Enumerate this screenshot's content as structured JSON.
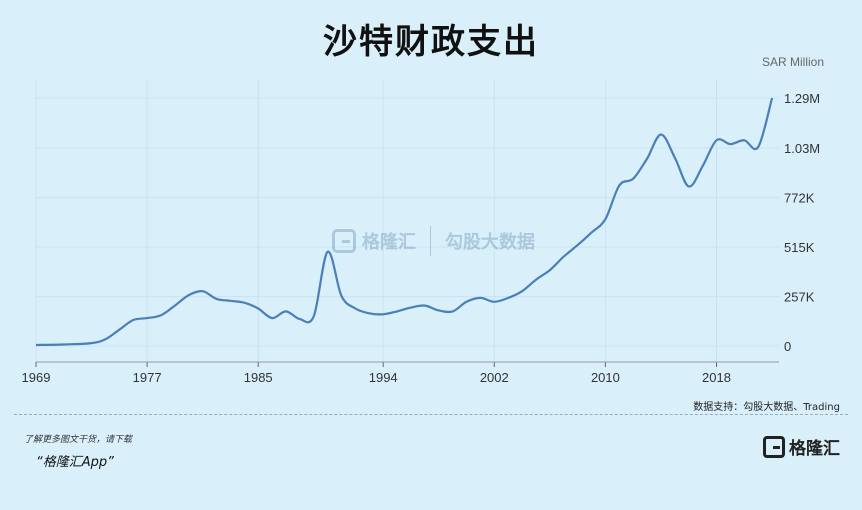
{
  "header": {
    "title": "沙特财政支出"
  },
  "watermark": {
    "name": "格隆汇",
    "name2": "勾股大数据"
  },
  "footer": {
    "source": "数据支持：勾股大数据、Trading",
    "download_hint": "了解更多图文干货，请下载",
    "app_name": "“格隆汇App”",
    "brand_name": "格隆汇"
  },
  "chart_data": {
    "type": "line",
    "title": "沙特财政支出",
    "unit_label": "SAR Million",
    "x_ticks": [
      "1969",
      "1977",
      "1985",
      "1994",
      "2002",
      "2010",
      "2018"
    ],
    "y_ticks": [
      "0",
      "257K",
      "515K",
      "772K",
      "1.03M",
      "1.29M"
    ],
    "y_tick_values": [
      0,
      257000,
      515000,
      772000,
      1030000,
      1290000
    ],
    "xlim": [
      1969,
      2022.5
    ],
    "ylim": [
      0,
      1290000
    ],
    "grid": true,
    "line_color": "#4a7fb8",
    "series": [
      {
        "x": [
          1969,
          1971,
          1973,
          1974,
          1975,
          1976,
          1977,
          1978,
          1979,
          1980,
          1981,
          1982,
          1983,
          1984,
          1985,
          1986,
          1987,
          1988,
          1989,
          1990,
          1991,
          1992,
          1993,
          1994,
          1995,
          1996,
          1997,
          1998,
          1999,
          2000,
          2001,
          2002,
          2003,
          2004,
          2005,
          2006,
          2007,
          2008,
          2009,
          2010,
          2011,
          2012,
          2013,
          2014,
          2015,
          2016,
          2017,
          2018,
          2019,
          2020,
          2021,
          2022
        ],
        "values": [
          5000,
          8000,
          15000,
          35000,
          85000,
          135000,
          145000,
          160000,
          210000,
          265000,
          285000,
          245000,
          235000,
          225000,
          195000,
          145000,
          180000,
          140000,
          155000,
          490000,
          260000,
          195000,
          170000,
          165000,
          180000,
          200000,
          210000,
          185000,
          180000,
          230000,
          250000,
          230000,
          250000,
          285000,
          345000,
          395000,
          465000,
          525000,
          590000,
          660000,
          835000,
          870000,
          975000,
          1100000,
          980000,
          830000,
          935000,
          1070000,
          1050000,
          1070000,
          1035000,
          1290000
        ]
      }
    ]
  }
}
